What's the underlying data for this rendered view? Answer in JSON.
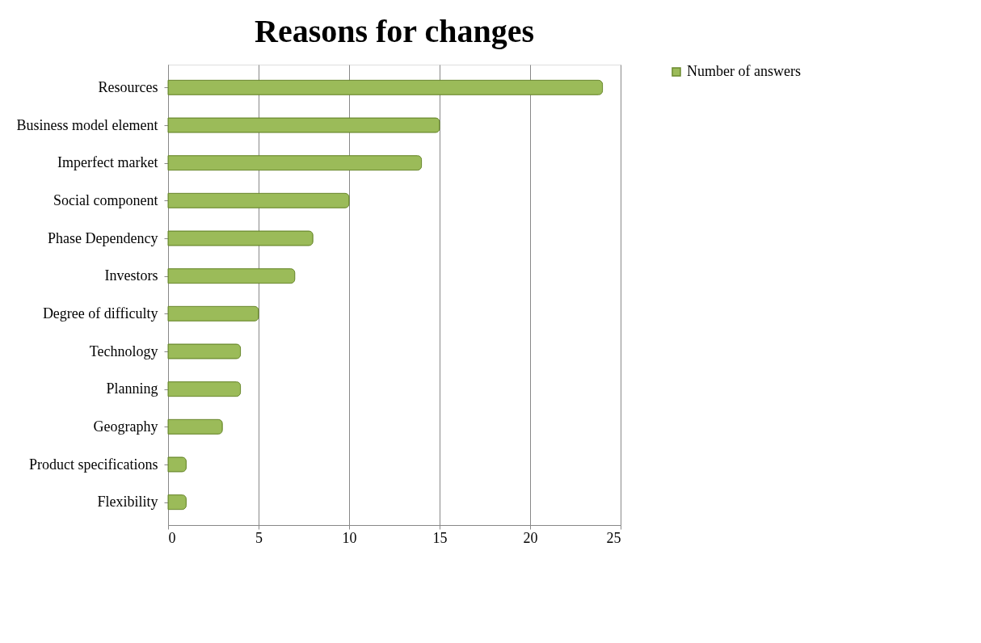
{
  "chart_data": {
    "type": "bar",
    "orientation": "horizontal",
    "title": "Reasons for changes",
    "categories": [
      "Resources",
      "Business model element",
      "Imperfect market",
      "Social component",
      "Phase Dependency",
      "Investors",
      "Degree of difficulty",
      "Technology",
      "Planning",
      "Geography",
      "Product specifications",
      "Flexibility"
    ],
    "series": [
      {
        "name": "Number of answers",
        "color": "#9bbb59",
        "values": [
          24,
          15,
          14,
          10,
          8,
          7,
          5,
          4,
          4,
          3,
          1,
          1
        ]
      }
    ],
    "xlim": [
      0,
      25
    ],
    "xticks": [
      0,
      5,
      10,
      15,
      20,
      25
    ],
    "grid": "x",
    "legend": "right"
  }
}
